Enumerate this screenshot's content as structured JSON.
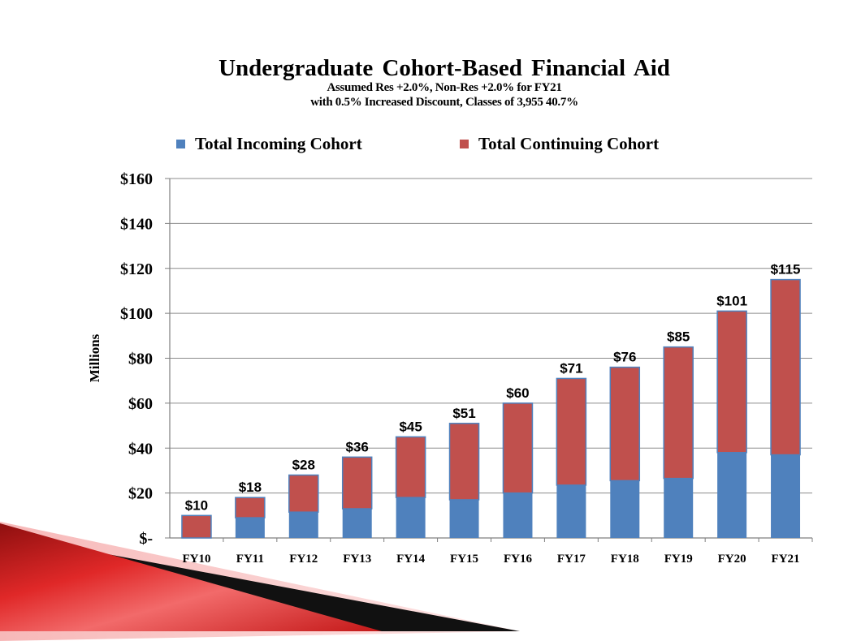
{
  "slide": {
    "title": "Undergraduate Cohort-Based Financial Aid",
    "subtitle_line1": "Assumed Res +2.0%, Non-Res +2.0% for FY21",
    "subtitle_line2": "with 0.5% Increased Discount, Classes of 3,955 40.7%"
  },
  "colors": {
    "incoming": "#4F81BD",
    "continuing": "#C0504D",
    "accent_red": "#CC1F1F"
  },
  "chart_data": {
    "type": "bar",
    "stacked": true,
    "categories": [
      "FY10",
      "FY11",
      "FY12",
      "FY13",
      "FY14",
      "FY15",
      "FY16",
      "FY17",
      "FY18",
      "FY19",
      "FY20",
      "FY21"
    ],
    "series": [
      {
        "name": "Total Incoming Cohort",
        "values": [
          0,
          9,
          11.5,
          13,
          18,
          17,
          20,
          23.5,
          25.5,
          26.5,
          38,
          37
        ]
      },
      {
        "name": "Total Continuing Cohort",
        "values": [
          10,
          9,
          16.5,
          23,
          27,
          34,
          40,
          47.5,
          50.5,
          58.5,
          63,
          78
        ]
      }
    ],
    "totals": [
      10,
      18,
      28,
      36,
      45,
      51,
      60,
      71,
      76,
      85,
      101,
      115
    ],
    "total_labels": [
      "$10",
      "$18",
      "$28",
      "$36",
      "$45",
      "$51",
      "$60",
      "$71",
      "$76",
      "$85",
      "$101",
      "$115"
    ],
    "ylabel": "Millions",
    "ylim": [
      0,
      160
    ],
    "yticks": [
      0,
      20,
      40,
      60,
      80,
      100,
      120,
      140,
      160
    ],
    "ytick_labels": [
      "$-",
      "$20",
      "$40",
      "$60",
      "$80",
      "$100",
      "$120",
      "$140",
      "$160"
    ],
    "legend_position": "top",
    "grid": true
  }
}
